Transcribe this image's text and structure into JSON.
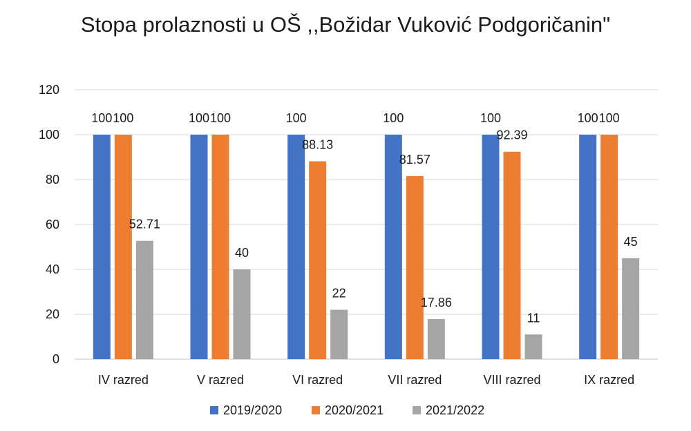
{
  "chart_data": {
    "type": "bar",
    "title": "Stopa prolaznosti u OŠ ,,Božidar Vuković Podgoričanin\"",
    "categories": [
      "IV razred",
      "V razred",
      "VI razred",
      "VII razred",
      "VIII razred",
      "IX razred"
    ],
    "series": [
      {
        "name": "2019/2020",
        "color": "#4472C4",
        "values": [
          100,
          100,
          100,
          100,
          100,
          100
        ]
      },
      {
        "name": "2020/2021",
        "color": "#ED7D31",
        "values": [
          100,
          100,
          88.13,
          81.57,
          92.39,
          100
        ]
      },
      {
        "name": "2021/2022",
        "color": "#A5A5A5",
        "values": [
          52.71,
          40,
          22,
          17.86,
          11,
          45
        ]
      }
    ],
    "ylim": [
      0,
      120
    ],
    "yticks": [
      0,
      20,
      40,
      60,
      80,
      100,
      120
    ],
    "grid": true,
    "legend_position": "bottom",
    "xlabel": "",
    "ylabel": ""
  }
}
